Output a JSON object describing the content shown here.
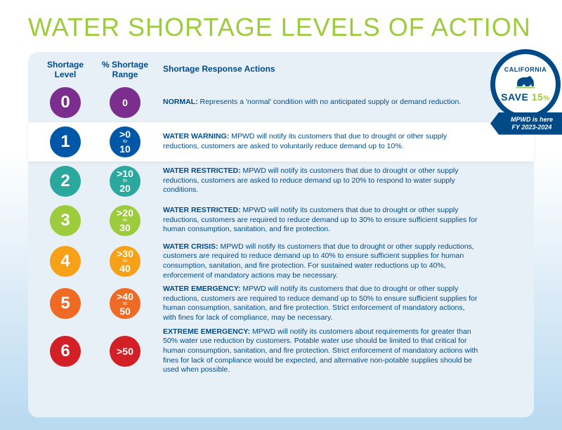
{
  "title": "WATER SHORTAGE LEVELS OF ACTION",
  "headers": {
    "level": "Shortage\nLevel",
    "range": "% Shortage\nRange",
    "actions": "Shortage Response Actions"
  },
  "colors": {
    "title": "#9ccb3c",
    "text": "#004b87",
    "panel_bg": "#e8f0f7",
    "highlight_bg": "#ffffff",
    "badge_blue": "#004b87",
    "badge_green": "#9ccb3c"
  },
  "rows": [
    {
      "level": "0",
      "range_type": "single",
      "range_value": "0",
      "color": "#7b2e8e",
      "highlighted": false,
      "title": "NORMAL:",
      "body": " Represents a 'normal' condition with no anticipated supply or demand reduction."
    },
    {
      "level": "1",
      "range_type": "range",
      "range_low": ">0",
      "range_to": "to",
      "range_high": "10",
      "color": "#0057a8",
      "highlighted": true,
      "title": "WATER WARNING:",
      "body": " MPWD will notify its customers that due to drought or other supply reductions, customers are asked to voluntarily reduce demand up to 10%."
    },
    {
      "level": "2",
      "range_type": "range",
      "range_low": ">10",
      "range_to": "to",
      "range_high": "20",
      "color": "#2ba89e",
      "highlighted": false,
      "title": "WATER RESTRICTED:",
      "body": " MPWD will notify its customers that due to drought or other supply reductions, customers are asked to reduce demand up to 20% to respond to water supply conditions."
    },
    {
      "level": "3",
      "range_type": "range",
      "range_low": ">20",
      "range_to": "to",
      "range_high": "30",
      "color": "#9ccb3c",
      "highlighted": false,
      "title": "WATER RESTRICTED:",
      "body": " MPWD will notify its customers that due to drought or other supply reductions, customers are required to reduce demand up to 30% to ensure sufficient supplies for human consumption, sanitation, and fire protection."
    },
    {
      "level": "4",
      "range_type": "range",
      "range_low": ">30",
      "range_to": "to",
      "range_high": "40",
      "color": "#f6a117",
      "highlighted": false,
      "title": "WATER CRISIS:",
      "body": " MPWD will notify its customers that due to drought or other supply reductions, customers are required to reduce demand up to 40% to ensure sufficient supplies for human consumption, sanitation, and fire protection. For sustained water reductions up to 40%, enforcement of mandatory actions may be necessary."
    },
    {
      "level": "5",
      "range_type": "range",
      "range_low": ">40",
      "range_to": "to",
      "range_high": "50",
      "color": "#ef6b23",
      "highlighted": false,
      "title": "WATER EMERGENCY:",
      "body": " MPWD will notify its customers that due to drought or other supply reductions, customers are required to reduce demand up to 50% to ensure sufficient supplies for human consumption, sanitation, and fire protection. Strict enforcement of mandatory actions, with fines for lack of compliance, may be necessary."
    },
    {
      "level": "6",
      "range_type": "single",
      "range_value": ">50",
      "color": "#d32027",
      "highlighted": false,
      "title": "EXTREME EMERGENCY:",
      "body": " MPWD will notify its customers about requirements for greater than 50% water use reduction by customers. Potable water use should be limited to that critical for human consumption, sanitation, and fire protection. Strict enforcement of mandatory actions with fines for lack of compliance would be expected, and alternative non-potable supplies should be used when possible."
    }
  ],
  "badge": {
    "top_text": "CALIFORNIA",
    "sub_text": "WAY OF LIFE",
    "save_label": "SAVE ",
    "save_pct_num": "15",
    "save_pct_sym": "%",
    "arrow_line1": "MPWD is here",
    "arrow_line2": "FY 2023-2024"
  }
}
